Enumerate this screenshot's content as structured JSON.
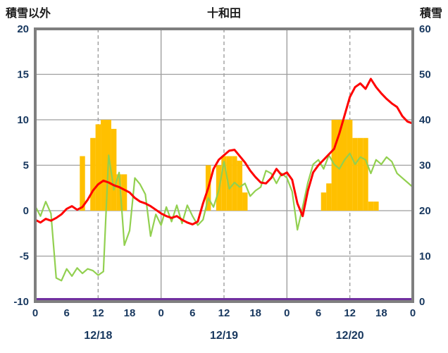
{
  "header": {
    "left_axis_title": "積雪以外",
    "chart_title": "十和田",
    "right_axis_title": "積雪"
  },
  "chart_data": {
    "type": "mixed-bar-line",
    "title": "十和田",
    "x": {
      "unit": "hour",
      "min": 0,
      "max": 72,
      "tick_step": 6,
      "tick_labels": [
        "0",
        "6",
        "12",
        "18",
        "0",
        "6",
        "12",
        "18",
        "0",
        "6",
        "12",
        "18",
        "0"
      ],
      "date_labels": [
        {
          "hour": 12,
          "label": "12/18"
        },
        {
          "hour": 36,
          "label": "12/19"
        },
        {
          "hour": 60,
          "label": "12/20"
        }
      ]
    },
    "left_axis": {
      "title": "積雪以外",
      "min": -10,
      "max": 20,
      "tick_interval": 5,
      "ticks": [
        20,
        15,
        10,
        5,
        0,
        -5,
        -10
      ]
    },
    "right_axis": {
      "title": "積雪",
      "min": 0,
      "max": 60,
      "tick_interval": 10,
      "ticks": [
        60,
        50,
        40,
        30,
        20,
        10,
        0
      ]
    },
    "grid": {
      "horizontal_left_values": [
        15,
        10,
        5,
        0,
        -5
      ],
      "vertical_solid_hours": [
        24,
        48
      ],
      "vertical_dashed_hours": [
        12,
        36,
        60
      ]
    },
    "colors": {
      "bars": "#FFC000",
      "red_line": "#FF0000",
      "green_line": "#92D050",
      "purple_line": "#7030A0",
      "frame": "#7F7F7F",
      "grid": "#9E9E9E",
      "text": "#17375E"
    },
    "series": [
      {
        "name": "orange-bars",
        "type": "bar",
        "axis": "left",
        "color_key": "bars",
        "values": [
          0,
          0,
          0,
          0,
          0,
          0,
          0,
          0,
          0,
          6,
          0,
          8,
          9.5,
          10,
          10,
          9,
          4,
          4,
          0,
          0,
          0,
          0,
          0,
          0,
          0,
          0,
          0,
          0,
          0,
          0,
          0,
          0,
          0,
          5,
          0,
          5,
          6,
          6,
          6,
          5.5,
          2,
          0,
          0,
          0,
          0,
          0,
          0,
          0,
          0,
          0,
          0,
          0,
          0,
          0,
          0,
          2,
          3,
          10,
          10,
          10,
          10,
          8,
          8,
          8,
          1,
          1,
          0,
          0,
          0,
          0,
          0,
          0,
          0
        ]
      },
      {
        "name": "green-line",
        "type": "line",
        "axis": "left",
        "color_key": "green_line",
        "width": 2.2,
        "values": [
          0.5,
          -0.6,
          1.0,
          -0.3,
          -7.4,
          -7.7,
          -6.4,
          -7.2,
          -6.3,
          -6.9,
          -6.4,
          -6.6,
          -7.1,
          -6.7,
          6.1,
          2.3,
          4.2,
          -3.8,
          -2.2,
          3.6,
          2.9,
          1.8,
          -2.8,
          -0.4,
          -1.6,
          0.4,
          -1.2,
          0.6,
          -1.4,
          0.6,
          -0.6,
          -1.6,
          -1.0,
          1.4,
          0.4,
          2.2,
          5.4,
          2.4,
          3.1,
          2.6,
          3.0,
          1.6,
          2.2,
          2.6,
          4.4,
          4.1,
          3.0,
          4.1,
          3.6,
          2.1,
          -2.1,
          0.4,
          3.1,
          5.1,
          5.6,
          4.6,
          6.1,
          5.1,
          4.6,
          5.6,
          6.3,
          5.1,
          5.9,
          5.6,
          4.1,
          5.6,
          5.1,
          5.9,
          5.4,
          4.1,
          3.6,
          3.1,
          2.6
        ]
      },
      {
        "name": "red-line",
        "type": "line",
        "axis": "left",
        "color_key": "red_line",
        "width": 3,
        "values": [
          -1.0,
          -1.3,
          -0.9,
          -1.1,
          -0.8,
          -0.4,
          0.2,
          0.5,
          0.1,
          0.4,
          1.2,
          2.2,
          2.9,
          3.3,
          3.1,
          2.8,
          2.6,
          2.3,
          2.0,
          1.4,
          1.0,
          0.8,
          0.5,
          0.1,
          -0.3,
          -0.6,
          -0.8,
          -0.6,
          -1.0,
          -1.3,
          -1.5,
          -1.2,
          0.8,
          2.5,
          4.6,
          5.6,
          6.1,
          6.6,
          6.7,
          6.0,
          5.3,
          4.4,
          3.7,
          3.1,
          3.0,
          3.6,
          4.6,
          3.9,
          4.2,
          3.4,
          0.8,
          -0.6,
          2.2,
          4.2,
          5.0,
          5.6,
          6.2,
          6.8,
          8.5,
          10.5,
          12.5,
          13.6,
          14.0,
          13.4,
          14.5,
          13.6,
          12.9,
          12.3,
          11.8,
          11.4,
          10.4,
          9.8,
          9.6
        ]
      },
      {
        "name": "purple-snow-line",
        "type": "line",
        "axis": "right",
        "color_key": "purple_line",
        "width": 3,
        "constant": 0
      }
    ]
  }
}
